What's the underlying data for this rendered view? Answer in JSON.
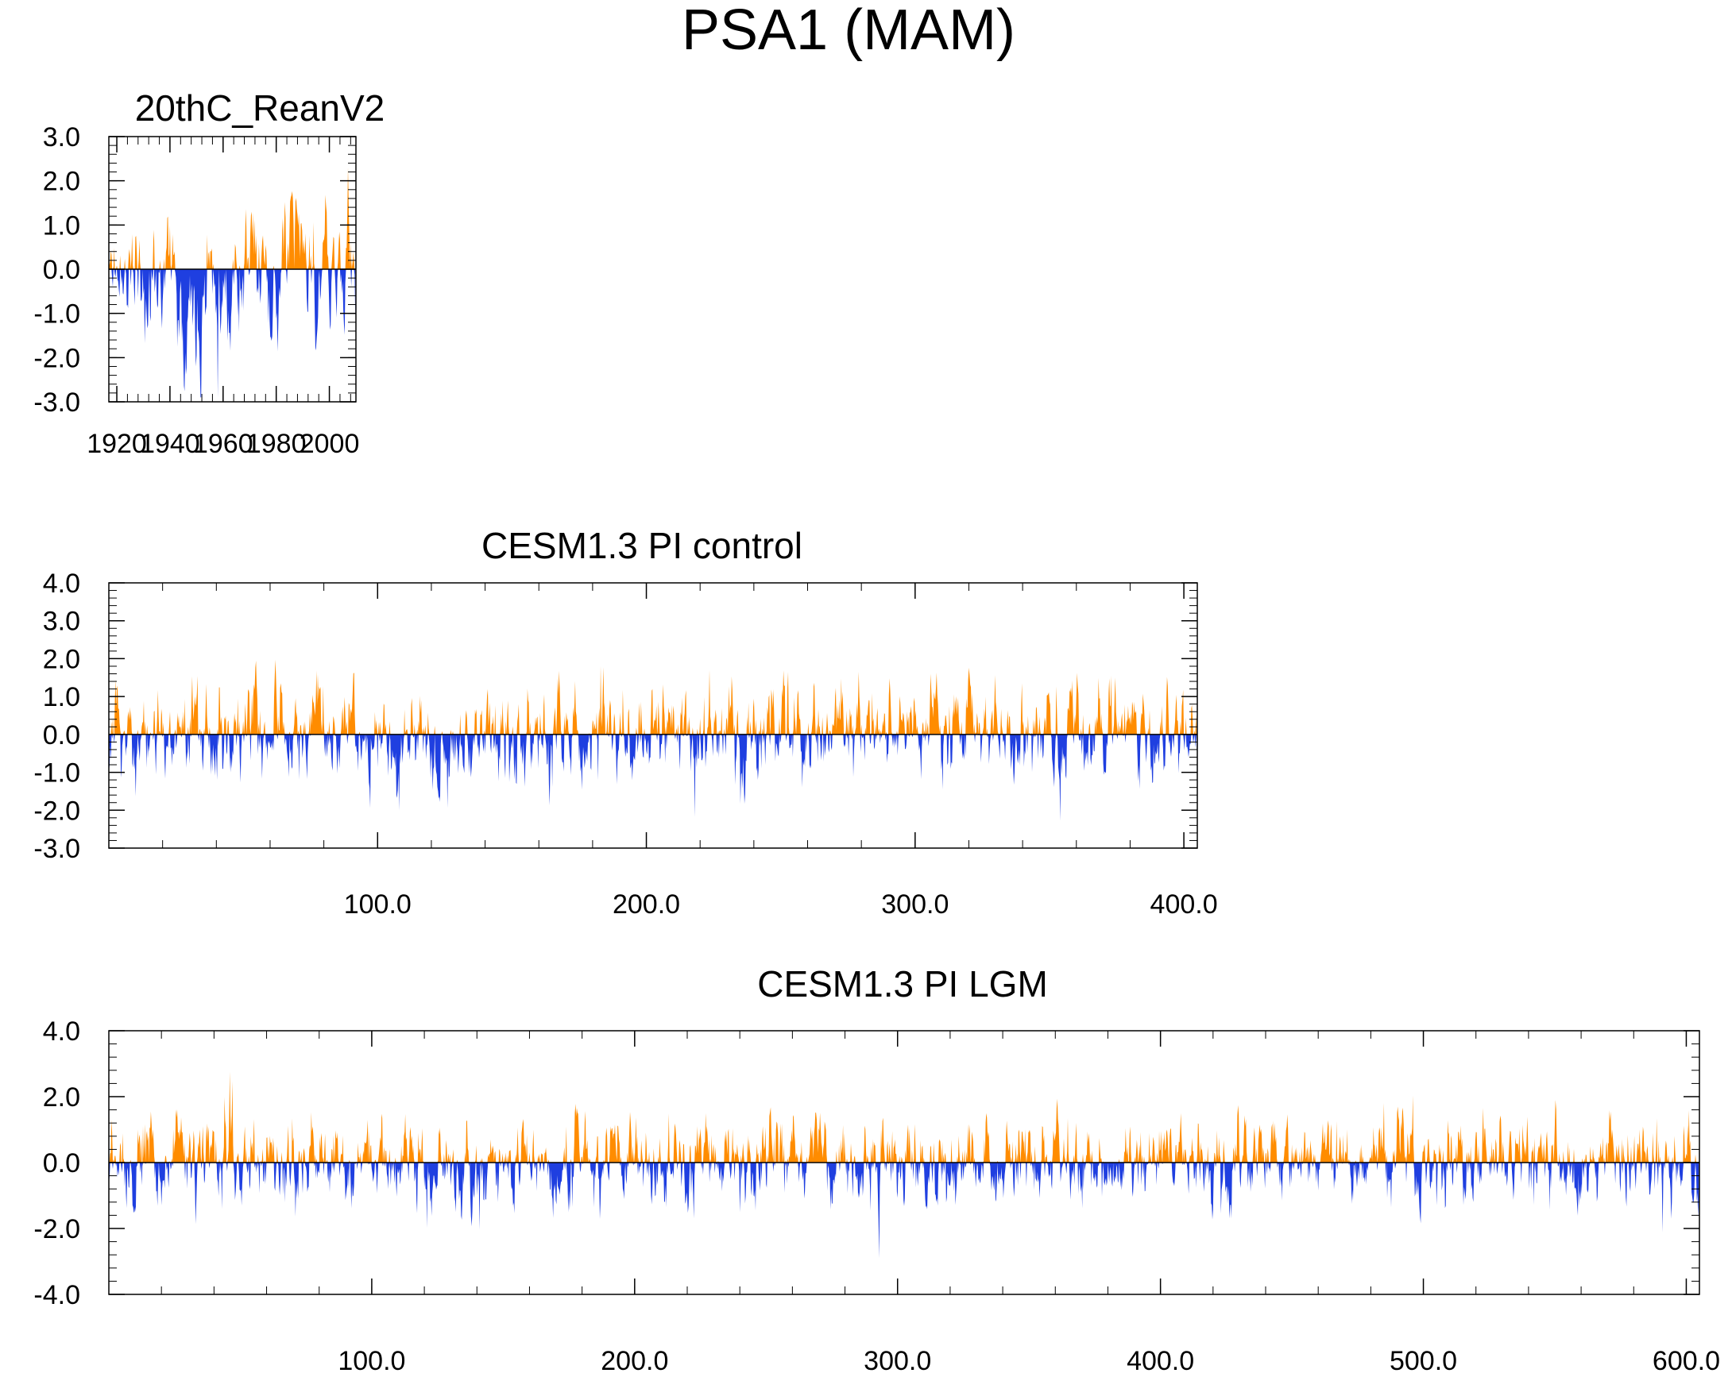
{
  "figure": {
    "title": "PSA1 (MAM)"
  },
  "colors": {
    "positive": "#ff8c00",
    "negative": "#1f3fe0",
    "axis": "#000000"
  },
  "chart_data": [
    {
      "type": "area",
      "title": "20thC_ReanV2",
      "x_range": [
        1917,
        2010
      ],
      "ylim": [
        -3.0,
        3.0
      ],
      "x_ticks": [
        "1920",
        "1940",
        "1960",
        "1980",
        "2000"
      ],
      "x_tick_values": [
        1920,
        1940,
        1960,
        1980,
        2000
      ],
      "y_ticks": [
        "3.0",
        "2.0",
        "1.0",
        "0.0",
        "-1.0",
        "-2.0",
        "-3.0"
      ],
      "y_tick_values": [
        3,
        2,
        1,
        0,
        -1,
        -2,
        -3
      ],
      "y_minor_step": 0.2,
      "x_minor_step": 4,
      "series": {
        "x_start": 1917,
        "x_step": 0.25,
        "count": 372,
        "seed": 11,
        "amp": 0.85,
        "persist": 0.8,
        "max_pos": 2.3,
        "max_neg": 2.9
      }
    },
    {
      "type": "area",
      "title": "CESM1.3 PI control",
      "x_range": [
        0,
        405
      ],
      "ylim": [
        -3.0,
        4.0
      ],
      "x_ticks": [
        "100.0",
        "200.0",
        "300.0",
        "400.0"
      ],
      "x_tick_values": [
        100,
        200,
        300,
        400
      ],
      "y_ticks": [
        "4.0",
        "3.0",
        "2.0",
        "1.0",
        "0.0",
        "-1.0",
        "-2.0",
        "-3.0"
      ],
      "y_tick_values": [
        4,
        3,
        2,
        1,
        0,
        -1,
        -2,
        -3
      ],
      "y_minor_step": 0.2,
      "x_minor_step": 20,
      "series": {
        "x_start": 0,
        "x_step": 0.25,
        "count": 1620,
        "seed": 23,
        "amp": 0.75,
        "persist": 0.65,
        "max_pos": 3.3,
        "max_neg": 2.3
      }
    },
    {
      "type": "area",
      "title": "CESM1.3 PI LGM",
      "x_range": [
        0,
        605
      ],
      "ylim": [
        -4.0,
        4.0
      ],
      "x_ticks": [
        "100.0",
        "200.0",
        "300.0",
        "400.0",
        "500.0",
        "600.0"
      ],
      "x_tick_values": [
        100,
        200,
        300,
        400,
        500,
        600
      ],
      "y_ticks": [
        "4.0",
        "2.0",
        "0.0",
        "-2.0",
        "-4.0"
      ],
      "y_tick_values": [
        4,
        2,
        0,
        -2,
        -4
      ],
      "y_minor_step": 0.4,
      "x_minor_step": 20,
      "series": {
        "x_start": 0,
        "x_step": 0.25,
        "count": 2420,
        "seed": 37,
        "amp": 0.8,
        "persist": 0.65,
        "max_pos": 3.3,
        "max_neg": 2.9
      }
    }
  ]
}
